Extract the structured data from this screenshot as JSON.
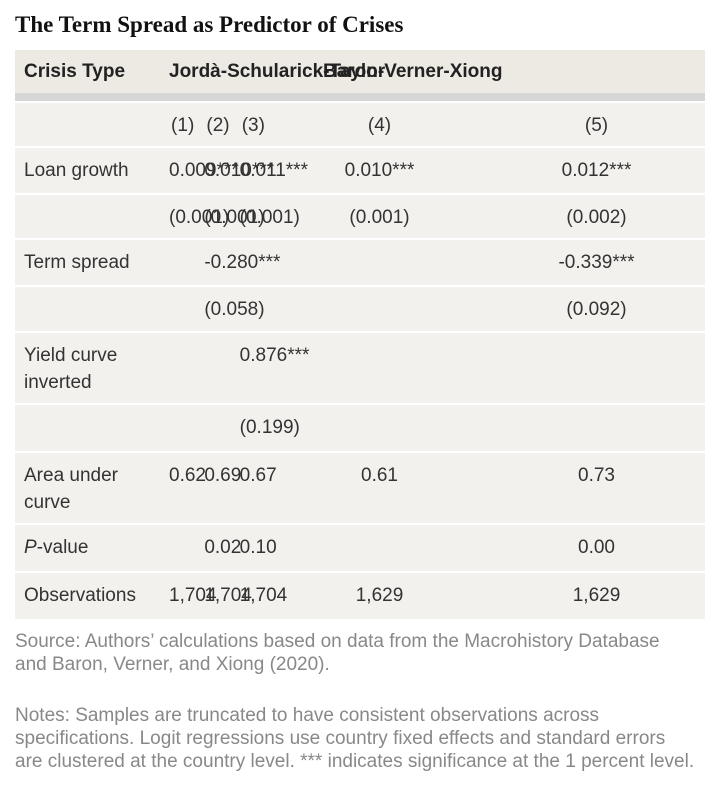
{
  "title": "The Term Spread as Predictor of Crises",
  "table": {
    "header": [
      "Crisis Type",
      "Jordà-Schularick-Taylor",
      "Baron-Verner-Xiong"
    ],
    "columns": [
      "(1)",
      "(2)",
      "(3)",
      "(4)",
      "(5)"
    ],
    "rows": [
      [
        "Loan growth",
        "0.009***",
        "0.010***",
        "0.011***",
        "0.010***",
        "0.012***"
      ],
      [
        null,
        "(0.001)",
        "(0.001)",
        "(0.001)",
        "(0.001)",
        "(0.002)"
      ],
      [
        "Term spread",
        null,
        "-0.280***",
        null,
        null,
        "-0.339***"
      ],
      [
        null,
        null,
        "(0.058)",
        null,
        null,
        "(0.092)"
      ],
      [
        "Yield curve inverted",
        null,
        null,
        "0.876***",
        null,
        null
      ],
      [
        null,
        null,
        null,
        "(0.199)",
        null,
        null
      ],
      [
        "Area under curve",
        "0.62",
        "0.69",
        "0.67",
        "0.61",
        "0.73"
      ],
      [
        "P-value",
        null,
        "0.02",
        "0.10",
        null,
        "0.00"
      ],
      [
        "Observations",
        "1,704",
        "1,704",
        "1,704",
        "1,629",
        "1,629"
      ]
    ]
  },
  "source": "Source: Authors’ calculations based on data from the Macrohistory Database and Baron, Verner, and Xiong (2020).",
  "notes": "Notes: Samples are truncated to have consistent observations across specifications. Logit regressions use country fixed effects and standard errors are clustered at the country level. *** indicates significance at the 1 percent level."
}
